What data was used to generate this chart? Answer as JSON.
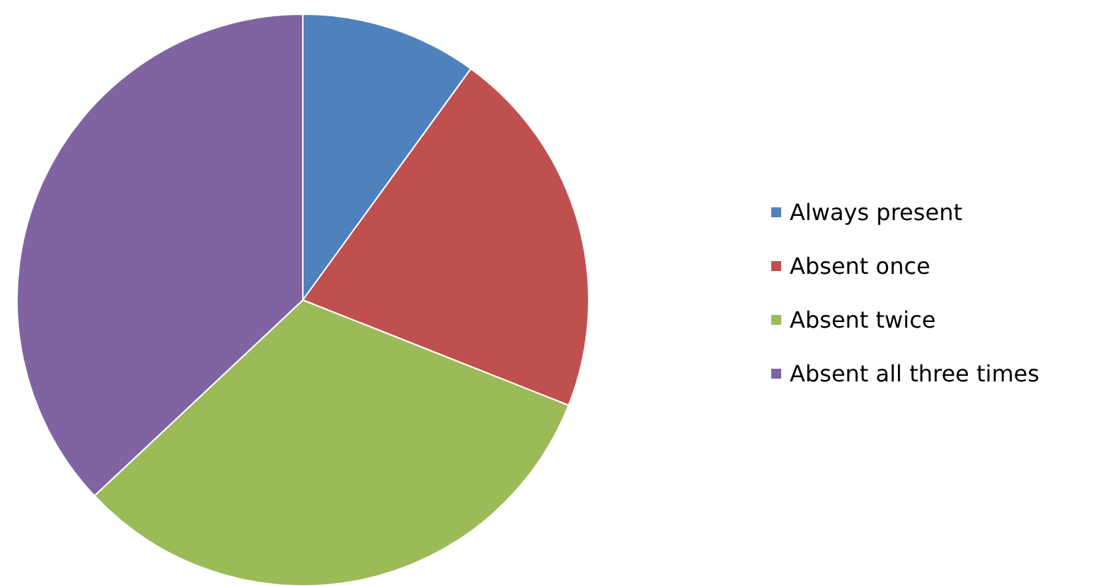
{
  "chart_data": {
    "type": "pie",
    "categories": [
      "Always present",
      "Absent once",
      "Absent twice",
      "Absent all three times"
    ],
    "values": [
      10,
      21,
      32,
      37
    ],
    "colors": [
      "#4f81bd",
      "#c0504d",
      "#9bbb59",
      "#8064a2"
    ],
    "legend": "right"
  }
}
